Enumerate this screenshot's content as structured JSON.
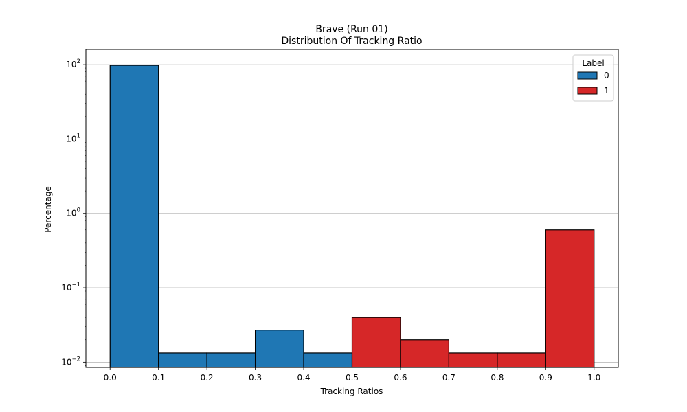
{
  "chart_data": {
    "type": "bar",
    "title": "Brave (Run 01)",
    "subtitle": "Distribution Of Tracking Ratio",
    "xlabel": "Tracking Ratios",
    "ylabel": "Percentage",
    "yscale": "log",
    "xlim": [
      -0.05,
      1.05
    ],
    "ylim": [
      0.0085,
      160
    ],
    "x_ticks": [
      "0.0",
      "0.1",
      "0.2",
      "0.3",
      "0.4",
      "0.5",
      "0.6",
      "0.7",
      "0.8",
      "0.9",
      "1.0"
    ],
    "y_ticks": [
      {
        "value": 0.01,
        "base": "10",
        "exp": "−2"
      },
      {
        "value": 0.1,
        "base": "10",
        "exp": "−1"
      },
      {
        "value": 1,
        "base": "10",
        "exp": "0"
      },
      {
        "value": 10,
        "base": "10",
        "exp": "1"
      },
      {
        "value": 100,
        "base": "10",
        "exp": "2"
      }
    ],
    "grid": "y-major",
    "legend": {
      "title": "Label",
      "placement": "top-right"
    },
    "series": [
      {
        "name": "0",
        "color": "#1f77b4",
        "bins": [
          {
            "x0": 0.0,
            "x1": 0.1,
            "value": 98
          },
          {
            "x0": 0.1,
            "x1": 0.2,
            "value": 0.0133
          },
          {
            "x0": 0.2,
            "x1": 0.3,
            "value": 0.0133
          },
          {
            "x0": 0.3,
            "x1": 0.4,
            "value": 0.027
          },
          {
            "x0": 0.4,
            "x1": 0.5,
            "value": 0.0133
          }
        ]
      },
      {
        "name": "1",
        "color": "#d62728",
        "bins": [
          {
            "x0": 0.5,
            "x1": 0.6,
            "value": 0.04
          },
          {
            "x0": 0.6,
            "x1": 0.7,
            "value": 0.02
          },
          {
            "x0": 0.7,
            "x1": 0.8,
            "value": 0.0133
          },
          {
            "x0": 0.8,
            "x1": 0.9,
            "value": 0.0133
          },
          {
            "x0": 0.9,
            "x1": 1.0,
            "value": 0.6
          }
        ]
      }
    ]
  }
}
